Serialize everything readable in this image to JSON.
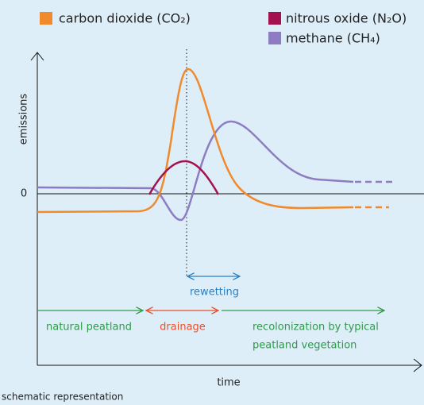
{
  "legend": {
    "items": [
      {
        "label": "carbon dioxide (CO₂)",
        "color": "#f08a2c"
      },
      {
        "label": "nitrous oxide (N₂O)",
        "color": "#a3124f"
      },
      {
        "label": "methane (CH₄)",
        "color": "#8e7cc3"
      }
    ]
  },
  "axes": {
    "y_label": "emissions",
    "zero_label": "0",
    "x_label": "time"
  },
  "phases": {
    "rewetting": "rewetting",
    "natural": "natural peatland",
    "drainage": "drainage",
    "recolonization": [
      "recolonization by typical",
      "peatland vegetation"
    ]
  },
  "footer": "schematic representation"
}
